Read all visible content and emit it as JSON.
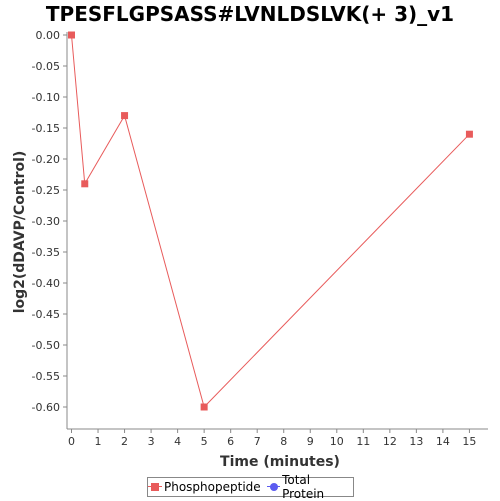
{
  "chart_data": {
    "type": "line",
    "title": "TPESFLGPSASS#LVNLDSLVK(+ 3)_v1",
    "xlabel": "Time (minutes)",
    "ylabel": "log2(dDAVP/Control)",
    "xlim": [
      0,
      15.7
    ],
    "ylim": [
      -0.635,
      0.0
    ],
    "x_ticks": [
      0,
      1,
      2,
      3,
      4,
      5,
      6,
      7,
      8,
      9,
      10,
      11,
      12,
      13,
      14,
      15
    ],
    "y_ticks": [
      0.0,
      -0.05,
      -0.1,
      -0.15,
      -0.2,
      -0.25,
      -0.3,
      -0.35,
      -0.4,
      -0.45,
      -0.5,
      -0.55,
      -0.6
    ],
    "y_tick_labels": [
      "0.00",
      "-0.05",
      "-0.10",
      "-0.15",
      "-0.20",
      "-0.25",
      "-0.30",
      "-0.35",
      "-0.40",
      "-0.45",
      "-0.50",
      "-0.55",
      "-0.60"
    ],
    "grid": false,
    "legend_position": "bottom",
    "series": [
      {
        "name": "Phosphopeptide",
        "color": "#e85b5b",
        "marker": "square",
        "x": [
          0,
          0.5,
          2,
          5,
          15
        ],
        "y": [
          0.0,
          -0.24,
          -0.13,
          -0.6,
          -0.16
        ]
      },
      {
        "name": "Total Protein",
        "color": "#5b5bf0",
        "marker": "circle",
        "x": [],
        "y": []
      }
    ]
  }
}
